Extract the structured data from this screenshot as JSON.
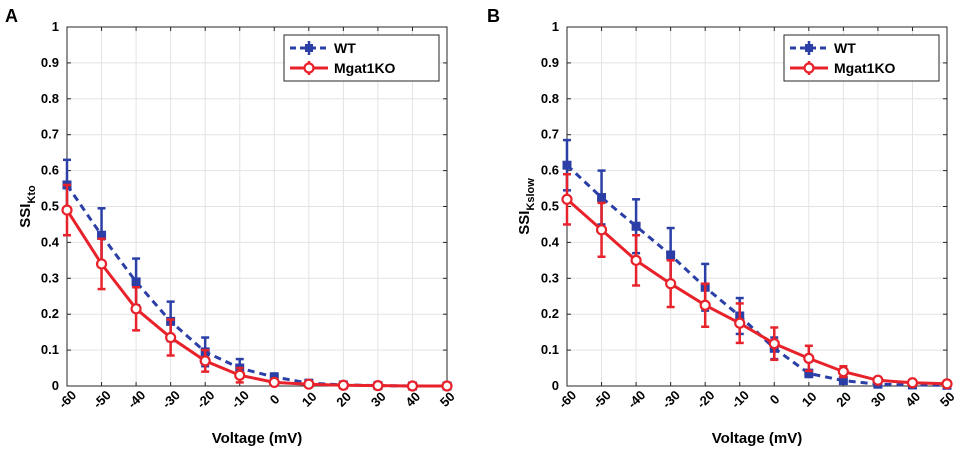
{
  "chart_data": [
    {
      "panel": "A",
      "type": "line",
      "xlabel": "Voltage (mV)",
      "ylabel_main": "SSI",
      "ylabel_sub": "Kto",
      "x": [
        -60,
        -50,
        -40,
        -30,
        -20,
        -10,
        0,
        10,
        20,
        30,
        40,
        50
      ],
      "xticks": [
        "-60",
        "-50",
        "-40",
        "-30",
        "-20",
        "-10",
        "0",
        "10",
        "20",
        "30",
        "40",
        "50"
      ],
      "yticks": [
        "0",
        "0.1",
        "0.2",
        "0.3",
        "0.4",
        "0.5",
        "0.6",
        "0.7",
        "0.8",
        "0.9",
        "1"
      ],
      "xlim": [
        -60,
        50
      ],
      "ylim": [
        0,
        1
      ],
      "grid": true,
      "legend_position": "top-right",
      "series": [
        {
          "name": "WT",
          "color": "#2b3fa6",
          "style": "dashed",
          "marker": "square",
          "values": [
            0.56,
            0.42,
            0.29,
            0.18,
            0.095,
            0.05,
            0.025,
            0.008,
            0.003,
            0.001,
            0.0,
            0.0
          ],
          "errors": [
            0.07,
            0.075,
            0.065,
            0.055,
            0.04,
            0.025,
            0.01,
            0.005,
            0.002,
            0.001,
            0.0,
            0.0
          ]
        },
        {
          "name": "Mgat1KO",
          "color": "#e8222b",
          "style": "solid",
          "marker": "circle",
          "values": [
            0.49,
            0.34,
            0.215,
            0.135,
            0.07,
            0.03,
            0.01,
            0.005,
            0.002,
            0.001,
            0.0,
            0.0
          ],
          "errors": [
            0.07,
            0.07,
            0.06,
            0.05,
            0.03,
            0.02,
            0.008,
            0.004,
            0.002,
            0.001,
            0.0,
            0.0
          ]
        }
      ]
    },
    {
      "panel": "B",
      "type": "line",
      "xlabel": "Voltage (mV)",
      "ylabel_main": "SSI",
      "ylabel_sub": "Kslow",
      "x": [
        -60,
        -50,
        -40,
        -30,
        -20,
        -10,
        0,
        10,
        20,
        30,
        40,
        50
      ],
      "xticks": [
        "-60",
        "-50",
        "-40",
        "-30",
        "-20",
        "-10",
        "0",
        "10",
        "20",
        "30",
        "40",
        "50"
      ],
      "yticks": [
        "0",
        "0.1",
        "0.2",
        "0.3",
        "0.4",
        "0.5",
        "0.6",
        "0.7",
        "0.8",
        "0.9",
        "1"
      ],
      "xlim": [
        -60,
        50
      ],
      "ylim": [
        0,
        1
      ],
      "grid": true,
      "legend_position": "top-right",
      "series": [
        {
          "name": "WT",
          "color": "#2b3fa6",
          "style": "dashed",
          "marker": "square",
          "values": [
            0.615,
            0.525,
            0.445,
            0.365,
            0.275,
            0.195,
            0.105,
            0.035,
            0.015,
            0.005,
            0.003,
            0.002
          ],
          "errors": [
            0.07,
            0.075,
            0.075,
            0.075,
            0.065,
            0.05,
            0.03,
            0.01,
            0.005,
            0.003,
            0.002,
            0.001
          ]
        },
        {
          "name": "Mgat1KO",
          "color": "#e8222b",
          "style": "solid",
          "marker": "circle",
          "values": [
            0.52,
            0.435,
            0.35,
            0.285,
            0.225,
            0.175,
            0.118,
            0.077,
            0.04,
            0.016,
            0.009,
            0.006
          ],
          "errors": [
            0.07,
            0.075,
            0.07,
            0.065,
            0.06,
            0.055,
            0.045,
            0.035,
            0.015,
            0.006,
            0.004,
            0.003
          ]
        }
      ]
    }
  ]
}
